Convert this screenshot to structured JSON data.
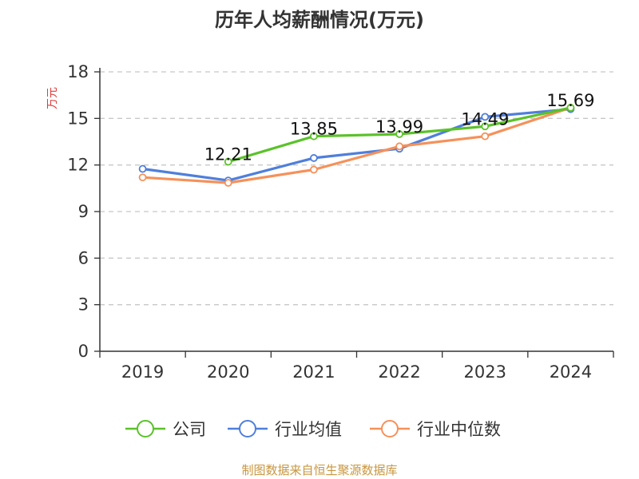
{
  "chart_data": {
    "type": "line",
    "title": "历年人均薪酬情况(万元)",
    "ylabel": "万元",
    "xlabel": "",
    "categories": [
      "2019",
      "2020",
      "2021",
      "2022",
      "2023",
      "2024"
    ],
    "ylim": [
      0,
      18
    ],
    "yticks": [
      0,
      3,
      6,
      9,
      12,
      15,
      18
    ],
    "grid": true,
    "legend_position": "bottom",
    "series": [
      {
        "name": "公司",
        "color": "#5ac229",
        "values": [
          null,
          12.21,
          13.85,
          13.99,
          14.49,
          15.69
        ],
        "labels": [
          "",
          "12.21",
          "13.85",
          "13.99",
          "14.49",
          "15.69"
        ]
      },
      {
        "name": "行业均值",
        "color": "#4f7fdb",
        "values": [
          11.75,
          11.0,
          12.45,
          13.05,
          15.1,
          15.6
        ]
      },
      {
        "name": "行业中位数",
        "color": "#f5915a",
        "values": [
          11.2,
          10.85,
          11.7,
          13.2,
          13.85,
          15.69
        ]
      }
    ],
    "source": "制图数据来自恒生聚源数据库"
  }
}
